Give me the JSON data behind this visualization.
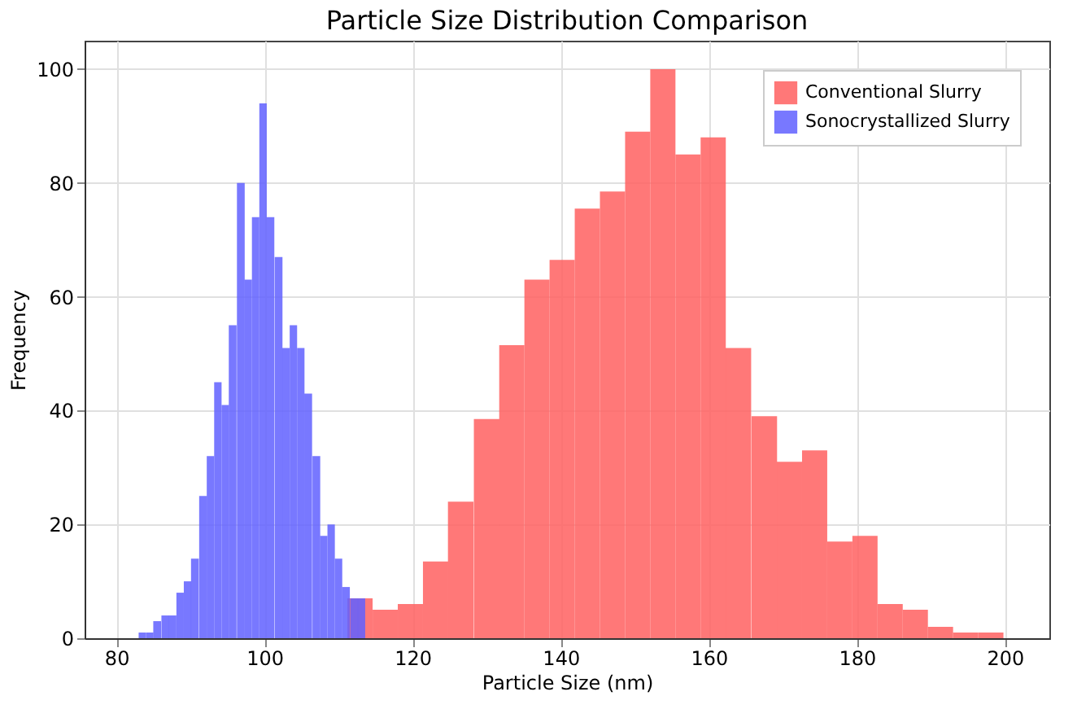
{
  "chart_data": {
    "type": "bar",
    "title": "Particle Size Distribution Comparison",
    "xlabel": "Particle Size (nm)",
    "ylabel": "Frequency",
    "series": [
      {
        "name": "Conventional Slurry",
        "color": "#ff6060",
        "x": [
          112.9,
          116.3,
          119.7,
          123.1,
          126.5,
          130.0,
          133.4,
          136.8,
          140.2,
          143.6,
          147.0,
          150.4,
          153.8,
          157.2,
          160.6,
          164.0,
          167.5,
          170.9,
          174.3,
          177.7,
          181.1,
          184.5,
          187.9,
          191.3,
          194.7,
          198.1
        ],
        "values": [
          7,
          5,
          6,
          13.5,
          24,
          38.5,
          51.5,
          63,
          66.5,
          75.5,
          78.5,
          89,
          100,
          85,
          88,
          51,
          39,
          31,
          33,
          17,
          18,
          6,
          5,
          2,
          1,
          1
        ]
      },
      {
        "name": "Sonocrystallized Slurry",
        "color": "#6060ff",
        "x": [
          83.5,
          84.5,
          85.5,
          86.6,
          87.6,
          88.6,
          89.6,
          90.6,
          91.7,
          92.7,
          93.7,
          94.7,
          95.7,
          96.8,
          97.8,
          98.8,
          99.8,
          100.8,
          101.9,
          102.9,
          103.9,
          104.9,
          105.9,
          107.0,
          108.0,
          109.0,
          110.0,
          111.0,
          112.1,
          113.1
        ],
        "values": [
          1,
          1,
          3,
          4,
          4,
          8,
          10,
          14,
          25,
          32,
          45,
          41,
          55,
          80,
          63,
          74,
          94,
          74,
          67,
          51,
          55,
          51,
          43,
          32,
          18,
          20,
          14,
          9,
          7,
          7
        ]
      }
    ],
    "xlim": [
      75.7,
      206
    ],
    "xticks": [
      80,
      100,
      120,
      140,
      160,
      180,
      200
    ],
    "ylim": [
      0,
      105
    ],
    "yticks": [
      0,
      20,
      40,
      60,
      80,
      100
    ],
    "grid": true,
    "legend": "top right"
  }
}
